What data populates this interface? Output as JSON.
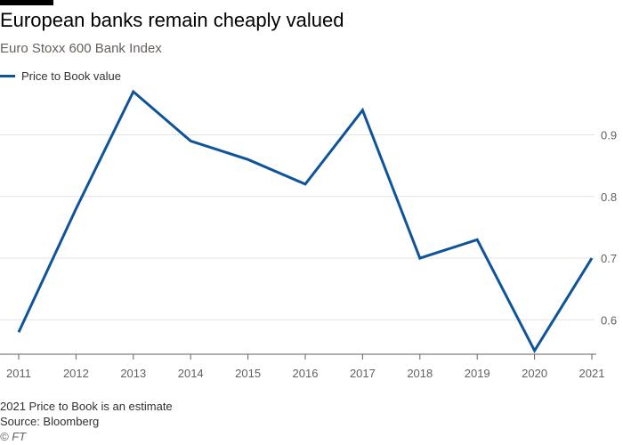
{
  "header": {
    "title": "European banks remain cheaply valued",
    "subtitle": "Euro Stoxx 600 Bank Index"
  },
  "legend": {
    "label": "Price to Book value"
  },
  "colors": {
    "series": "#0f5499",
    "grid": "#e6e2de",
    "axis": "#66605c"
  },
  "chart_data": {
    "type": "line",
    "title": "European banks remain cheaply valued",
    "subtitle": "Euro Stoxx 600 Bank Index",
    "xlabel": "",
    "ylabel": "",
    "x": [
      "2011",
      "2012",
      "2013",
      "2014",
      "2015",
      "2016",
      "2017",
      "2018",
      "2019",
      "2020",
      "2021"
    ],
    "series": [
      {
        "name": "Price to Book value",
        "values": [
          0.58,
          0.78,
          0.97,
          0.89,
          0.86,
          0.82,
          0.94,
          0.7,
          0.73,
          0.55,
          0.7
        ]
      }
    ],
    "ylim": [
      0.55,
      0.97
    ],
    "yticks": [
      0.6,
      0.7,
      0.8,
      0.9
    ],
    "ytick_labels": [
      "0.6",
      "0.7",
      "0.8",
      "0.9"
    ],
    "y_axis_position": "right",
    "grid": true,
    "legend_position": "top-left"
  },
  "footer": {
    "note": "2021 Price to Book is an estimate",
    "source": "Source: Bloomberg",
    "credit": "© FT"
  }
}
